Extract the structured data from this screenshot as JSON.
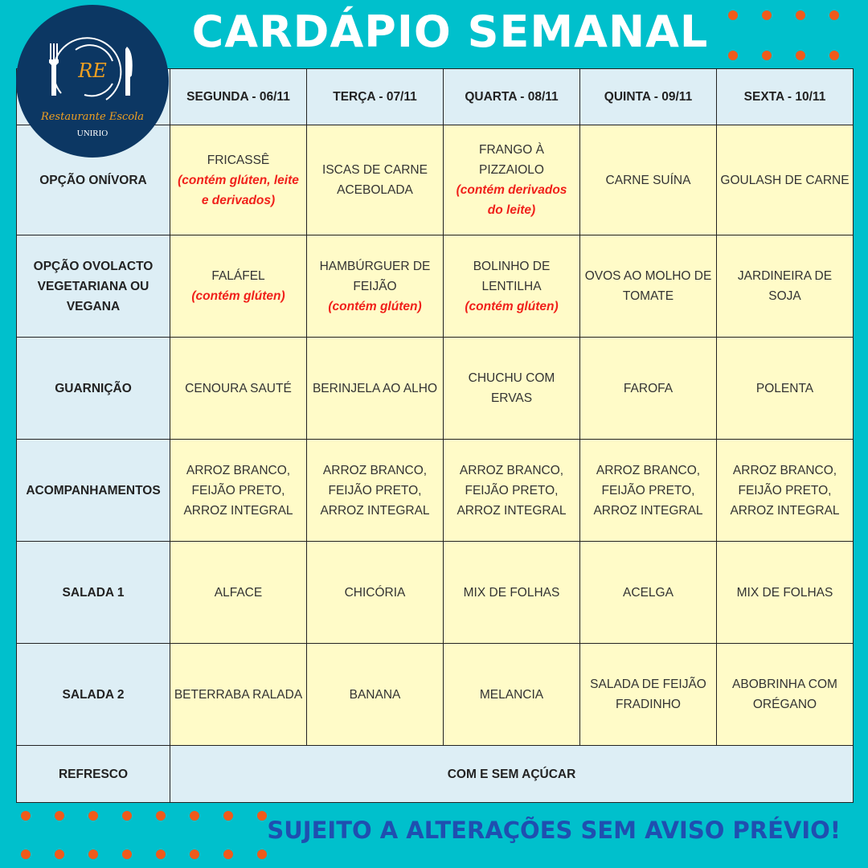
{
  "title": "CARDÁPIO SEMANAL",
  "logo": {
    "monogram": "RE",
    "name": "Restaurante Escola",
    "org": "UNIRIO"
  },
  "colors": {
    "background": "#00c0cc",
    "dots": "#f05a1a",
    "logo": "#0c3763",
    "header_cell": "#ddeef5",
    "body_cell": "#fffbc8",
    "allergen": "#f0201a",
    "footer": "#1f4fb0"
  },
  "days": [
    "SEGUNDA - 06/11",
    "TERÇA - 07/11",
    "QUARTA - 08/11",
    "QUINTA - 09/11",
    "SEXTA - 10/11"
  ],
  "rows": [
    {
      "label": "OPÇÃO ONÍVORA",
      "cells": [
        {
          "dish": "FRICASSÊ",
          "note": "(contém glúten, leite e derivados)"
        },
        {
          "dish": "ISCAS DE CARNE ACEBOLADA",
          "note": ""
        },
        {
          "dish": "FRANGO À PIZZAIOLO",
          "note": "(contém derivados do leite)"
        },
        {
          "dish": "CARNE SUÍNA",
          "note": ""
        },
        {
          "dish": "GOULASH DE CARNE",
          "note": ""
        }
      ]
    },
    {
      "label": "OPÇÃO OVOLACTO VEGETARIANA OU VEGANA",
      "cells": [
        {
          "dish": "FALÁFEL",
          "note": "(contém glúten)"
        },
        {
          "dish": "HAMBÚRGUER DE FEIJÃO",
          "note": "(contém glúten)"
        },
        {
          "dish": "BOLINHO DE LENTILHA",
          "note": "(contém glúten)"
        },
        {
          "dish": "OVOS AO MOLHO DE TOMATE",
          "note": ""
        },
        {
          "dish": "JARDINEIRA DE SOJA",
          "note": ""
        }
      ]
    },
    {
      "label": "GUARNIÇÃO",
      "cells": [
        {
          "dish": "CENOURA SAUTÉ",
          "note": ""
        },
        {
          "dish": "BERINJELA AO ALHO",
          "note": ""
        },
        {
          "dish": "CHUCHU COM ERVAS",
          "note": ""
        },
        {
          "dish": "FAROFA",
          "note": ""
        },
        {
          "dish": "POLENTA",
          "note": ""
        }
      ]
    },
    {
      "label": "ACOMPANHAMENTOS",
      "cells": [
        {
          "dish": "ARROZ BRANCO, FEIJÃO PRETO, ARROZ INTEGRAL",
          "note": ""
        },
        {
          "dish": "ARROZ BRANCO, FEIJÃO PRETO, ARROZ INTEGRAL",
          "note": ""
        },
        {
          "dish": "ARROZ BRANCO, FEIJÃO PRETO, ARROZ INTEGRAL",
          "note": ""
        },
        {
          "dish": "ARROZ BRANCO, FEIJÃO PRETO, ARROZ INTEGRAL",
          "note": ""
        },
        {
          "dish": "ARROZ BRANCO, FEIJÃO PRETO, ARROZ INTEGRAL",
          "note": ""
        }
      ]
    },
    {
      "label": "SALADA 1",
      "cells": [
        {
          "dish": "ALFACE",
          "note": ""
        },
        {
          "dish": "CHICÓRIA",
          "note": ""
        },
        {
          "dish": "MIX DE FOLHAS",
          "note": ""
        },
        {
          "dish": "ACELGA",
          "note": ""
        },
        {
          "dish": "MIX DE FOLHAS",
          "note": ""
        }
      ]
    },
    {
      "label": "SALADA 2",
      "cells": [
        {
          "dish": "BETERRABA RALADA",
          "note": ""
        },
        {
          "dish": "BANANA",
          "note": ""
        },
        {
          "dish": "MELANCIA",
          "note": ""
        },
        {
          "dish": "SALADA DE FEIJÃO FRADINHO",
          "note": ""
        },
        {
          "dish": "ABOBRINHA COM ORÉGANO",
          "note": ""
        }
      ]
    }
  ],
  "refresco": {
    "label": "REFRESCO",
    "value": "COM E SEM AÇÚCAR"
  },
  "footer": "SUJEITO A ALTERAÇÕES SEM AVISO PRÉVIO!"
}
